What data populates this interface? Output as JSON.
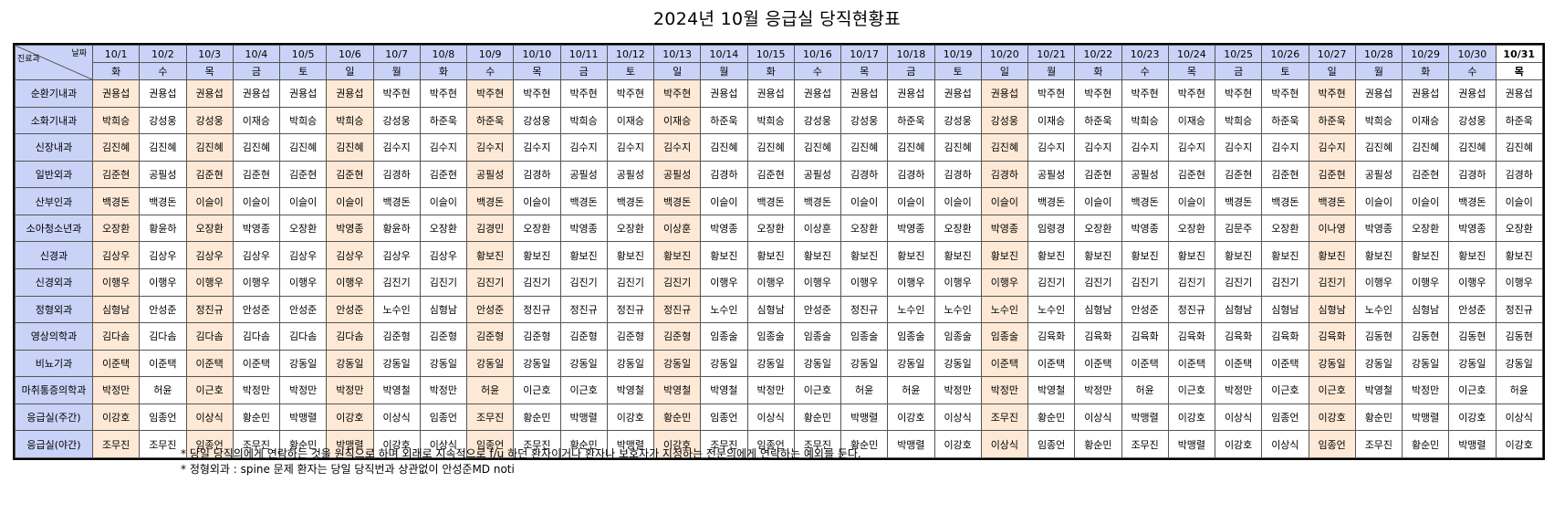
{
  "title": "2024년 10월 응급실 당직현황표",
  "corner": {
    "left": "진료과",
    "right": "날짜"
  },
  "dates": [
    "10/1",
    "10/2",
    "10/3",
    "10/4",
    "10/5",
    "10/6",
    "10/7",
    "10/8",
    "10/9",
    "10/10",
    "10/11",
    "10/12",
    "10/13",
    "10/14",
    "10/15",
    "10/16",
    "10/17",
    "10/18",
    "10/19",
    "10/20",
    "10/21",
    "10/22",
    "10/23",
    "10/24",
    "10/25",
    "10/26",
    "10/27",
    "10/28",
    "10/29",
    "10/30",
    "10/31"
  ],
  "days": [
    "화",
    "수",
    "목",
    "금",
    "토",
    "일",
    "월",
    "화",
    "수",
    "목",
    "금",
    "토",
    "일",
    "월",
    "화",
    "수",
    "목",
    "금",
    "토",
    "일",
    "월",
    "화",
    "수",
    "목",
    "금",
    "토",
    "일",
    "월",
    "화",
    "수",
    "목"
  ],
  "today_index": 30,
  "holiday_indices": [
    0,
    2,
    5,
    8,
    12,
    19,
    26
  ],
  "rows": [
    {
      "dept": "순환기내과",
      "names": [
        "권용섭",
        "권용섭",
        "권용섭",
        "권용섭",
        "권용섭",
        "권용섭",
        "박주현",
        "박주현",
        "박주현",
        "박주현",
        "박주현",
        "박주현",
        "박주현",
        "권용섭",
        "권용섭",
        "권용섭",
        "권용섭",
        "권용섭",
        "권용섭",
        "권용섭",
        "박주현",
        "박주현",
        "박주현",
        "박주현",
        "박주현",
        "박주현",
        "박주현",
        "권용섭",
        "권용섭",
        "권용섭",
        "권용섭"
      ]
    },
    {
      "dept": "소화기내과",
      "names": [
        "박희승",
        "강성웅",
        "강성웅",
        "이재승",
        "박희승",
        "박희승",
        "강성웅",
        "하준욱",
        "하준욱",
        "강성웅",
        "박희승",
        "이재승",
        "이재승",
        "하준욱",
        "박희승",
        "강성웅",
        "강성웅",
        "하준욱",
        "강성웅",
        "강성웅",
        "이재승",
        "하준욱",
        "박희승",
        "이재승",
        "박희승",
        "하준욱",
        "하준욱",
        "박희승",
        "이재승",
        "강성웅",
        "하준욱"
      ]
    },
    {
      "dept": "신장내과",
      "names": [
        "김진혜",
        "김진혜",
        "김진혜",
        "김진혜",
        "김진혜",
        "김진혜",
        "김수지",
        "김수지",
        "김수지",
        "김수지",
        "김수지",
        "김수지",
        "김수지",
        "김진혜",
        "김진혜",
        "김진혜",
        "김진혜",
        "김진혜",
        "김진혜",
        "김진혜",
        "김수지",
        "김수지",
        "김수지",
        "김수지",
        "김수지",
        "김수지",
        "김수지",
        "김진혜",
        "김진혜",
        "김진혜",
        "김진혜"
      ]
    },
    {
      "dept": "일반외과",
      "names": [
        "김준현",
        "공필성",
        "김준현",
        "김준현",
        "김준현",
        "김준현",
        "김경하",
        "김준현",
        "공필성",
        "김경하",
        "공필성",
        "공필성",
        "공필성",
        "김경하",
        "김준현",
        "공필성",
        "김경하",
        "김경하",
        "김경하",
        "김경하",
        "공필성",
        "김준현",
        "공필성",
        "김준현",
        "김준현",
        "김준현",
        "김준현",
        "공필성",
        "김준현",
        "김경하",
        "김경하"
      ]
    },
    {
      "dept": "산부인과",
      "names": [
        "백경돈",
        "백경돈",
        "이슬이",
        "이슬이",
        "이슬이",
        "이슬이",
        "백경돈",
        "이슬이",
        "백경돈",
        "이슬이",
        "백경돈",
        "백경돈",
        "백경돈",
        "이슬이",
        "백경돈",
        "백경돈",
        "이슬이",
        "이슬이",
        "이슬이",
        "이슬이",
        "백경돈",
        "이슬이",
        "백경돈",
        "이슬이",
        "백경돈",
        "백경돈",
        "백경돈",
        "이슬이",
        "이슬이",
        "백경돈",
        "이슬이"
      ]
    },
    {
      "dept": "소아청소년과",
      "names": [
        "오장환",
        "황윤하",
        "오장환",
        "박영종",
        "오장환",
        "박영종",
        "황윤하",
        "오장환",
        "김경민",
        "오장환",
        "박영종",
        "오장환",
        "이상훈",
        "박영종",
        "오장환",
        "이상훈",
        "오장환",
        "박영종",
        "오장환",
        "박영종",
        "임령경",
        "오장환",
        "박영종",
        "오장환",
        "김문주",
        "오장환",
        "이나영",
        "박영종",
        "오장환",
        "박영종",
        "오장환"
      ]
    },
    {
      "dept": "신경과",
      "names": [
        "김상우",
        "김상우",
        "김상우",
        "김상우",
        "김상우",
        "김상우",
        "김상우",
        "김상우",
        "황보진",
        "황보진",
        "황보진",
        "황보진",
        "황보진",
        "황보진",
        "황보진",
        "황보진",
        "황보진",
        "황보진",
        "황보진",
        "황보진",
        "황보진",
        "황보진",
        "황보진",
        "황보진",
        "황보진",
        "황보진",
        "황보진",
        "황보진",
        "황보진",
        "황보진",
        "황보진"
      ]
    },
    {
      "dept": "신경외과",
      "names": [
        "이행우",
        "이행우",
        "이행우",
        "이행우",
        "이행우",
        "이행우",
        "김진기",
        "김진기",
        "김진기",
        "김진기",
        "김진기",
        "김진기",
        "김진기",
        "이행우",
        "이행우",
        "이행우",
        "이행우",
        "이행우",
        "이행우",
        "이행우",
        "김진기",
        "김진기",
        "김진기",
        "김진기",
        "김진기",
        "김진기",
        "김진기",
        "이행우",
        "이행우",
        "이행우",
        "이행우"
      ]
    },
    {
      "dept": "정형외과",
      "names": [
        "심형남",
        "안성준",
        "정진규",
        "안성준",
        "안성준",
        "안성준",
        "노수인",
        "심형남",
        "안성준",
        "정진규",
        "정진규",
        "정진규",
        "정진규",
        "노수인",
        "심형남",
        "안성준",
        "정진규",
        "노수인",
        "노수인",
        "노수인",
        "노수인",
        "심형남",
        "안성준",
        "정진규",
        "심형남",
        "심형남",
        "심형남",
        "노수인",
        "심형남",
        "안성준",
        "정진규"
      ]
    },
    {
      "dept": "영상의학과",
      "names": [
        "김다솜",
        "김다솜",
        "김다솜",
        "김다솜",
        "김다솜",
        "김다솜",
        "김준형",
        "김준형",
        "김준형",
        "김준형",
        "김준형",
        "김준형",
        "김준형",
        "임종술",
        "임종술",
        "임종술",
        "임종술",
        "임종술",
        "임종술",
        "임종술",
        "김육화",
        "김육화",
        "김육화",
        "김육화",
        "김육화",
        "김육화",
        "김육화",
        "김동현",
        "김동현",
        "김동현",
        "김동현"
      ]
    },
    {
      "dept": "비뇨기과",
      "names": [
        "이준택",
        "이준택",
        "이준택",
        "이준택",
        "강동일",
        "강동일",
        "강동일",
        "강동일",
        "강동일",
        "강동일",
        "강동일",
        "강동일",
        "강동일",
        "강동일",
        "강동일",
        "강동일",
        "강동일",
        "강동일",
        "강동일",
        "이준택",
        "이준택",
        "이준택",
        "이준택",
        "이준택",
        "이준택",
        "이준택",
        "강동일",
        "강동일",
        "강동일",
        "강동일",
        "강동일"
      ]
    },
    {
      "dept": "마취통증의학과",
      "names": [
        "박정만",
        "허윤",
        "이근호",
        "박정만",
        "박정만",
        "박정만",
        "박영철",
        "박정만",
        "허윤",
        "이근호",
        "이근호",
        "박영철",
        "박영철",
        "박영철",
        "박정만",
        "이근호",
        "허윤",
        "허윤",
        "박정만",
        "박정만",
        "박영철",
        "박정만",
        "허윤",
        "이근호",
        "박정만",
        "이근호",
        "이근호",
        "박영철",
        "박정만",
        "이근호",
        "허윤"
      ]
    },
    {
      "dept": "응급실(주간)",
      "names": [
        "이강호",
        "임종언",
        "이상식",
        "황순민",
        "박맹렬",
        "이강호",
        "이상식",
        "임종언",
        "조무진",
        "황순민",
        "박맹렬",
        "이강호",
        "황순민",
        "임종언",
        "이상식",
        "황순민",
        "박맹렬",
        "이강호",
        "이상식",
        "조무진",
        "황순민",
        "이상식",
        "박맹렬",
        "이강호",
        "이상식",
        "임종언",
        "이강호",
        "황순민",
        "박맹렬",
        "이강호",
        "이상식"
      ]
    },
    {
      "dept": "응급실(야간)",
      "names": [
        "조무진",
        "조무진",
        "임종언",
        "조무진",
        "황순민",
        "박맹렬",
        "이강호",
        "이상식",
        "임종언",
        "조무진",
        "황순민",
        "박맹렬",
        "이강호",
        "조무진",
        "임종언",
        "조무진",
        "황순민",
        "박맹렬",
        "이강호",
        "이상식",
        "임종언",
        "황순민",
        "조무진",
        "박맹렬",
        "이강호",
        "이상식",
        "임종언",
        "조무진",
        "황순민",
        "박맹렬",
        "이강호"
      ]
    }
  ],
  "notes": [
    "* 당일 당직의에게 연락하는 것을 원칙으로 하며 외래로 지속적으로 f/u 하던 환자이거나 환자나 보호자가 지정하는 전문의에게 연락하는 예외를 둔다.",
    "* 정형외과 : spine 문제 환자는 당일 당직번과 상관없이 안성준MD noti"
  ]
}
